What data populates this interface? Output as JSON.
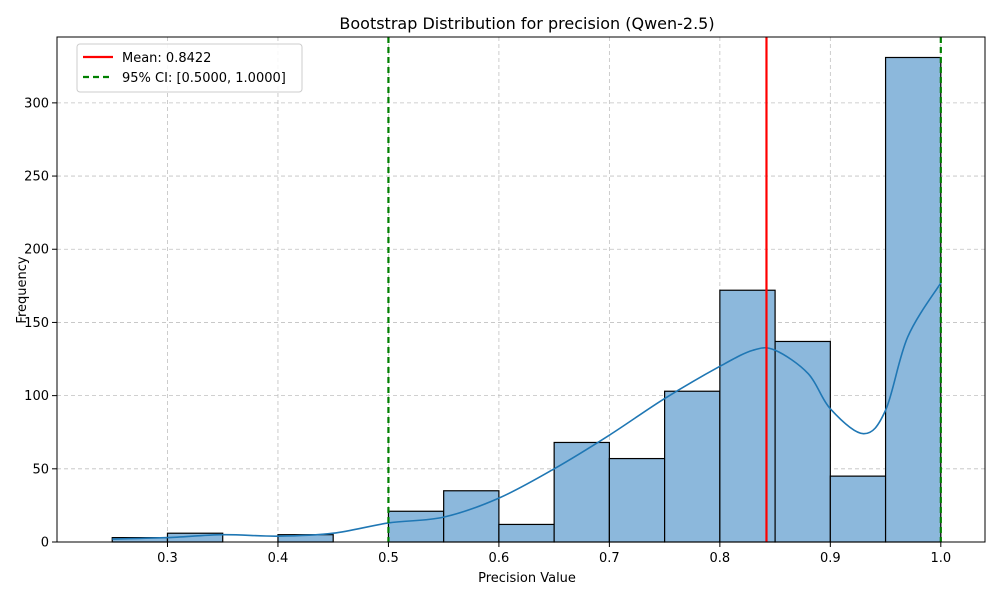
{
  "chart_data": {
    "type": "bar",
    "title": "Bootstrap Distribution for precision (Qwen-2.5)",
    "xlabel": "Precision Value",
    "ylabel": "Frequency",
    "xlim": [
      0.2,
      1.04
    ],
    "ylim": [
      0,
      345
    ],
    "x_ticks": [
      0.3,
      0.4,
      0.5,
      0.6,
      0.7,
      0.8,
      0.9,
      1.0
    ],
    "x_tick_labels": [
      "0.3",
      "0.4",
      "0.5",
      "0.6",
      "0.7",
      "0.8",
      "0.9",
      "1.0"
    ],
    "y_ticks": [
      0,
      50,
      100,
      150,
      200,
      250,
      300
    ],
    "y_tick_labels": [
      "0",
      "50",
      "100",
      "150",
      "200",
      "250",
      "300"
    ],
    "grid": true,
    "bins": [
      {
        "start": 0.25,
        "end": 0.3,
        "count": 3
      },
      {
        "start": 0.3,
        "end": 0.35,
        "count": 6
      },
      {
        "start": 0.35,
        "end": 0.4,
        "count": 0
      },
      {
        "start": 0.4,
        "end": 0.45,
        "count": 5
      },
      {
        "start": 0.45,
        "end": 0.5,
        "count": 0
      },
      {
        "start": 0.5,
        "end": 0.55,
        "count": 21
      },
      {
        "start": 0.55,
        "end": 0.6,
        "count": 35
      },
      {
        "start": 0.6,
        "end": 0.65,
        "count": 12
      },
      {
        "start": 0.65,
        "end": 0.7,
        "count": 68
      },
      {
        "start": 0.7,
        "end": 0.75,
        "count": 57
      },
      {
        "start": 0.75,
        "end": 0.8,
        "count": 103
      },
      {
        "start": 0.8,
        "end": 0.85,
        "count": 172
      },
      {
        "start": 0.85,
        "end": 0.9,
        "count": 137
      },
      {
        "start": 0.9,
        "end": 0.95,
        "count": 45
      },
      {
        "start": 0.95,
        "end": 1.0,
        "count": 331
      }
    ],
    "kde": {
      "x": [
        0.25,
        0.3,
        0.35,
        0.4,
        0.45,
        0.5,
        0.55,
        0.6,
        0.65,
        0.7,
        0.75,
        0.8,
        0.83,
        0.85,
        0.88,
        0.9,
        0.93,
        0.95,
        0.97,
        1.0
      ],
      "y": [
        2,
        3,
        5,
        4,
        6,
        13,
        17,
        30,
        50,
        73,
        98,
        120,
        131,
        131,
        115,
        91,
        74,
        90,
        140,
        177
      ]
    },
    "mean": 0.8422,
    "ci": [
      0.5,
      1.0
    ],
    "legend": {
      "position": "top-left",
      "entries": [
        {
          "label": "Mean: 0.8422",
          "color": "#ff0000",
          "style": "solid"
        },
        {
          "label": "95% CI: [0.5000, 1.0000]",
          "color": "#008000",
          "style": "dashed"
        }
      ]
    },
    "colors": {
      "bar_fill": "#8cb8dc",
      "bar_edge": "#000000",
      "kde_line": "#1f77b4",
      "mean_line": "#ff0000",
      "ci_line": "#008000",
      "grid": "#c0c0c0"
    }
  }
}
